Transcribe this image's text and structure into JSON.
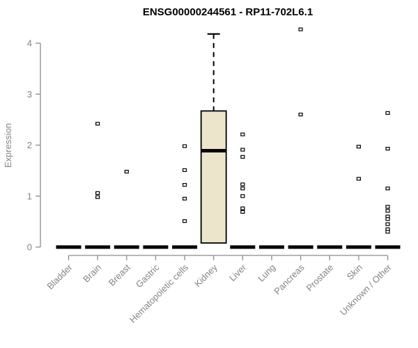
{
  "title": "ENSG00000244561 - RP11-702L6.1",
  "chart_data": {
    "type": "boxplot",
    "title": "ENSG00000244561 - RP11-702L6.1",
    "ylabel": "Expression",
    "xlabel": "",
    "ylim": [
      0,
      4.35
    ],
    "yticks": [
      0,
      1,
      2,
      3,
      4
    ],
    "grid": false,
    "legend_position": "none",
    "categories": [
      "Bladder",
      "Brain",
      "Breast",
      "Gastric",
      "Hematopoietic cells",
      "Kidney",
      "Liver",
      "Lung",
      "Pancreas",
      "Prostate",
      "Skin",
      "Unknown / Other"
    ],
    "boxes": [
      {
        "category": "Bladder",
        "q1": 0,
        "median": 0,
        "q3": 0,
        "whisker_low": 0,
        "whisker_high": 0,
        "outliers": []
      },
      {
        "category": "Brain",
        "q1": 0,
        "median": 0,
        "q3": 0,
        "whisker_low": 0,
        "whisker_high": 0,
        "outliers": [
          2.42,
          1.06,
          0.98
        ]
      },
      {
        "category": "Breast",
        "q1": 0,
        "median": 0,
        "q3": 0,
        "whisker_low": 0,
        "whisker_high": 0,
        "outliers": [
          1.48
        ]
      },
      {
        "category": "Gastric",
        "q1": 0,
        "median": 0,
        "q3": 0,
        "whisker_low": 0,
        "whisker_high": 0,
        "outliers": []
      },
      {
        "category": "Hematopoietic cells",
        "q1": 0,
        "median": 0,
        "q3": 0,
        "whisker_low": 0,
        "whisker_high": 0,
        "outliers": [
          1.98,
          1.51,
          1.22,
          0.95,
          0.51
        ]
      },
      {
        "category": "Kidney",
        "q1": 0.08,
        "median": 1.89,
        "q3": 2.67,
        "whisker_low": 0.08,
        "whisker_high": 4.18,
        "outliers": []
      },
      {
        "category": "Liver",
        "q1": 0,
        "median": 0,
        "q3": 0,
        "whisker_low": 0,
        "whisker_high": 0,
        "outliers": [
          2.21,
          1.91,
          1.77,
          1.23,
          1.15,
          1.0,
          0.76,
          0.69
        ]
      },
      {
        "category": "Lung",
        "q1": 0,
        "median": 0,
        "q3": 0,
        "whisker_low": 0,
        "whisker_high": 0,
        "outliers": []
      },
      {
        "category": "Pancreas",
        "q1": 0,
        "median": 0,
        "q3": 0,
        "whisker_low": 0,
        "whisker_high": 0,
        "outliers": [
          4.27,
          2.6
        ]
      },
      {
        "category": "Prostate",
        "q1": 0,
        "median": 0,
        "q3": 0,
        "whisker_low": 0,
        "whisker_high": 0,
        "outliers": []
      },
      {
        "category": "Skin",
        "q1": 0,
        "median": 0,
        "q3": 0,
        "whisker_low": 0,
        "whisker_high": 0,
        "outliers": [
          1.97,
          1.34
        ]
      },
      {
        "category": "Unknown / Other",
        "q1": 0,
        "median": 0,
        "q3": 0,
        "whisker_low": 0,
        "whisker_high": 0,
        "outliers": [
          2.63,
          1.93,
          1.15,
          0.79,
          0.71,
          0.6,
          0.55,
          0.45,
          0.35,
          0.3
        ]
      }
    ],
    "colors": {
      "background": "#FFFFFF",
      "title": "#000000",
      "axis_line": "#8C8C8C",
      "axis_text": "#848484",
      "box_fill": "#ECE5CB",
      "box_stroke": "#000000",
      "median": "#000000",
      "whisker": "#000000",
      "outlier_stroke": "#000000",
      "outlier_fill": "#FFFFFF"
    }
  }
}
